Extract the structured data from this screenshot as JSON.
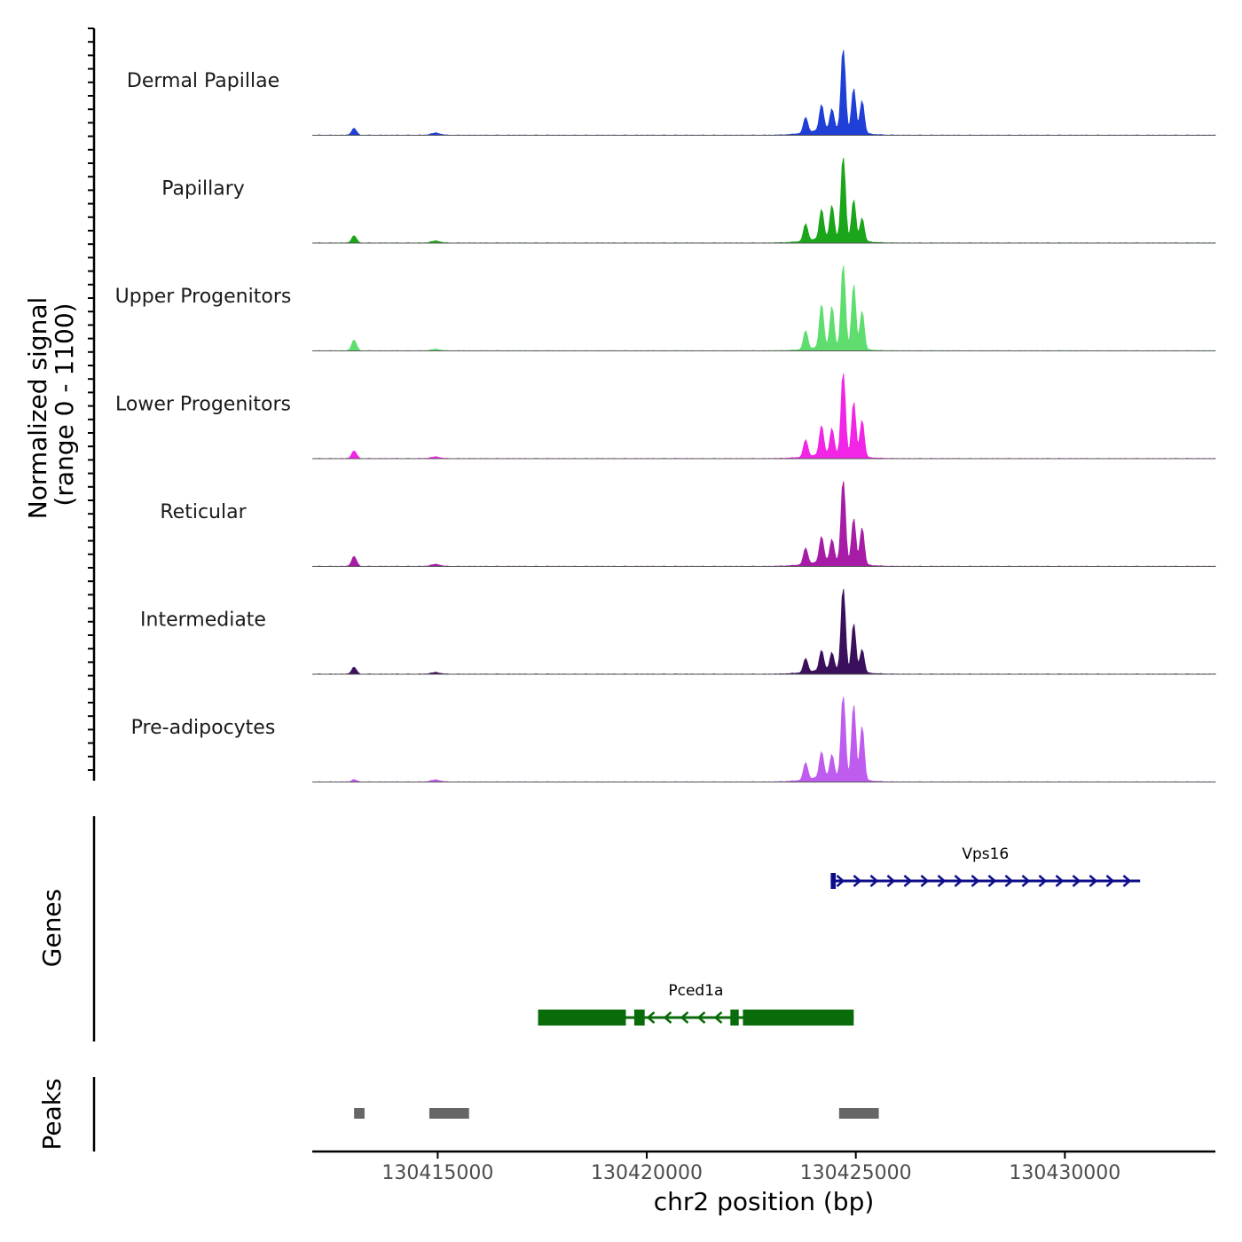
{
  "chart_data": {
    "type": "area",
    "title": "",
    "ylabel_line1": "Normalized signal",
    "ylabel_line2": "(range 0 - 1100)",
    "ylim": [
      0,
      1100
    ],
    "xlabel": "chr2 position (bp)",
    "xlim": [
      130412000,
      130433600
    ],
    "xticks": [
      130415000,
      130420000,
      130425000,
      130430000
    ],
    "xtick_labels": [
      "130415000",
      "130420000",
      "130425000",
      "130430000"
    ],
    "peak_centers": [
      130423800,
      130424180,
      130424430,
      130424700,
      130424950,
      130425150
    ],
    "tracks": [
      {
        "name": "Dermal Papillae",
        "color": "#1f3fd6",
        "peaks": [
          200,
          330,
          260,
          1100,
          560,
          420
        ],
        "bg": 80,
        "left_spike": 90
      },
      {
        "name": "Papillary",
        "color": "#1aa51a",
        "peaks": [
          220,
          380,
          420,
          1100,
          520,
          300
        ],
        "bg": 70,
        "left_spike": 95
      },
      {
        "name": "Upper Progenitors",
        "color": "#5fde6f",
        "peaks": [
          240,
          560,
          520,
          1100,
          830,
          500
        ],
        "bg": 55,
        "left_spike": 140
      },
      {
        "name": "Lower Progenitors",
        "color": "#f224e6",
        "peaks": [
          220,
          380,
          330,
          1100,
          700,
          480
        ],
        "bg": 60,
        "left_spike": 100
      },
      {
        "name": "Reticular",
        "color": "#a61ca6",
        "peaks": [
          210,
          330,
          280,
          1100,
          580,
          480
        ],
        "bg": 70,
        "left_spike": 130
      },
      {
        "name": "Intermediate",
        "color": "#3a0f5c",
        "peaks": [
          180,
          260,
          220,
          1100,
          620,
          300
        ],
        "bg": 60,
        "left_spike": 90
      },
      {
        "name": "Pre-adipocytes",
        "color": "#be5cf0",
        "peaks": [
          220,
          330,
          280,
          1100,
          960,
          700
        ],
        "bg": 75,
        "left_spike": 30
      }
    ],
    "genes_label": "Genes",
    "genes": [
      {
        "name": "Vps16",
        "strand": "+",
        "start": 130424400,
        "end": 130431800,
        "color": "#0d0d8c",
        "exons": [
          [
            130424400,
            130424520
          ]
        ]
      },
      {
        "name": "Pced1a",
        "strand": "-",
        "start": 130417400,
        "end": 130424950,
        "color": "#0a6b0a",
        "exons": [
          [
            130417400,
            130419500
          ],
          [
            130419700,
            130419950
          ],
          [
            130422000,
            130422200
          ],
          [
            130422300,
            130424950
          ]
        ]
      }
    ],
    "peaks_label": "Peaks",
    "peak_regions": [
      [
        130413000,
        130413250
      ],
      [
        130414800,
        130415750
      ],
      [
        130424600,
        130425550
      ]
    ],
    "peak_color": "#666666"
  }
}
